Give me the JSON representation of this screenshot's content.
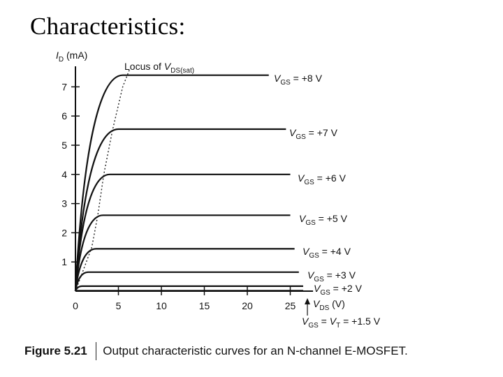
{
  "slide_title": "Characteristics:",
  "caption": {
    "figure_label": "Figure 5.21",
    "text": "Output characteristic curves for an N-channel E-MOSFET."
  },
  "chart_data": {
    "type": "line",
    "title": "",
    "ylabel_var": "I",
    "ylabel_sub": "D",
    "ylabel_unit": " (mA)",
    "xlabel_var": "V",
    "xlabel_sub": "DS",
    "xlabel_unit": " (V)",
    "xlim": [
      0,
      27
    ],
    "ylim": [
      0,
      7.8
    ],
    "xticks": [
      0,
      5,
      10,
      15,
      20,
      25
    ],
    "yticks": [
      1,
      2,
      3,
      4,
      5,
      6,
      7
    ],
    "grid": false,
    "locus": {
      "label_pre": "Locus of ",
      "label_var": "V",
      "label_sub": "DS(sat)",
      "points": [
        [
          0,
          0
        ],
        [
          1.9,
          1.5
        ],
        [
          2.6,
          2.6
        ],
        [
          3.3,
          4.0
        ],
        [
          4.3,
          5.5
        ],
        [
          5.5,
          7.0
        ],
        [
          6.3,
          7.6
        ]
      ]
    },
    "series": [
      {
        "vgs": "8",
        "label_var": "V",
        "label_sub": "GS",
        "label_rest": " = +8 V",
        "sat": 7.4,
        "vsat": 5.5,
        "end": 22.5
      },
      {
        "vgs": "7",
        "label_var": "V",
        "label_sub": "GS",
        "label_rest": " = +7 V",
        "sat": 5.55,
        "vsat": 5.0,
        "end": 24.5
      },
      {
        "vgs": "6",
        "label_var": "V",
        "label_sub": "GS",
        "label_rest": " = +6 V",
        "sat": 4.0,
        "vsat": 4.0,
        "end": 25.0
      },
      {
        "vgs": "5",
        "label_var": "V",
        "label_sub": "GS",
        "label_rest": " = +5 V",
        "sat": 2.6,
        "vsat": 3.2,
        "end": 25.0
      },
      {
        "vgs": "4",
        "label_var": "V",
        "label_sub": "GS",
        "label_rest": " = +4 V",
        "sat": 1.45,
        "vsat": 2.4,
        "end": 25.5
      },
      {
        "vgs": "3",
        "label_var": "V",
        "label_sub": "GS",
        "label_rest": " = +3 V",
        "sat": 0.65,
        "vsat": 1.5,
        "end": 26.0
      },
      {
        "vgs": "2",
        "label_var": "V",
        "label_sub": "GS",
        "label_rest": " = +2 V",
        "sat": 0.17,
        "vsat": 0.8,
        "end": 26.5
      }
    ],
    "threshold_label": {
      "var": "V",
      "sub": "GS",
      "mid": " = ",
      "var2": "V",
      "sub2": "T",
      "rest": " = +1.5 V",
      "value": 0
    }
  }
}
